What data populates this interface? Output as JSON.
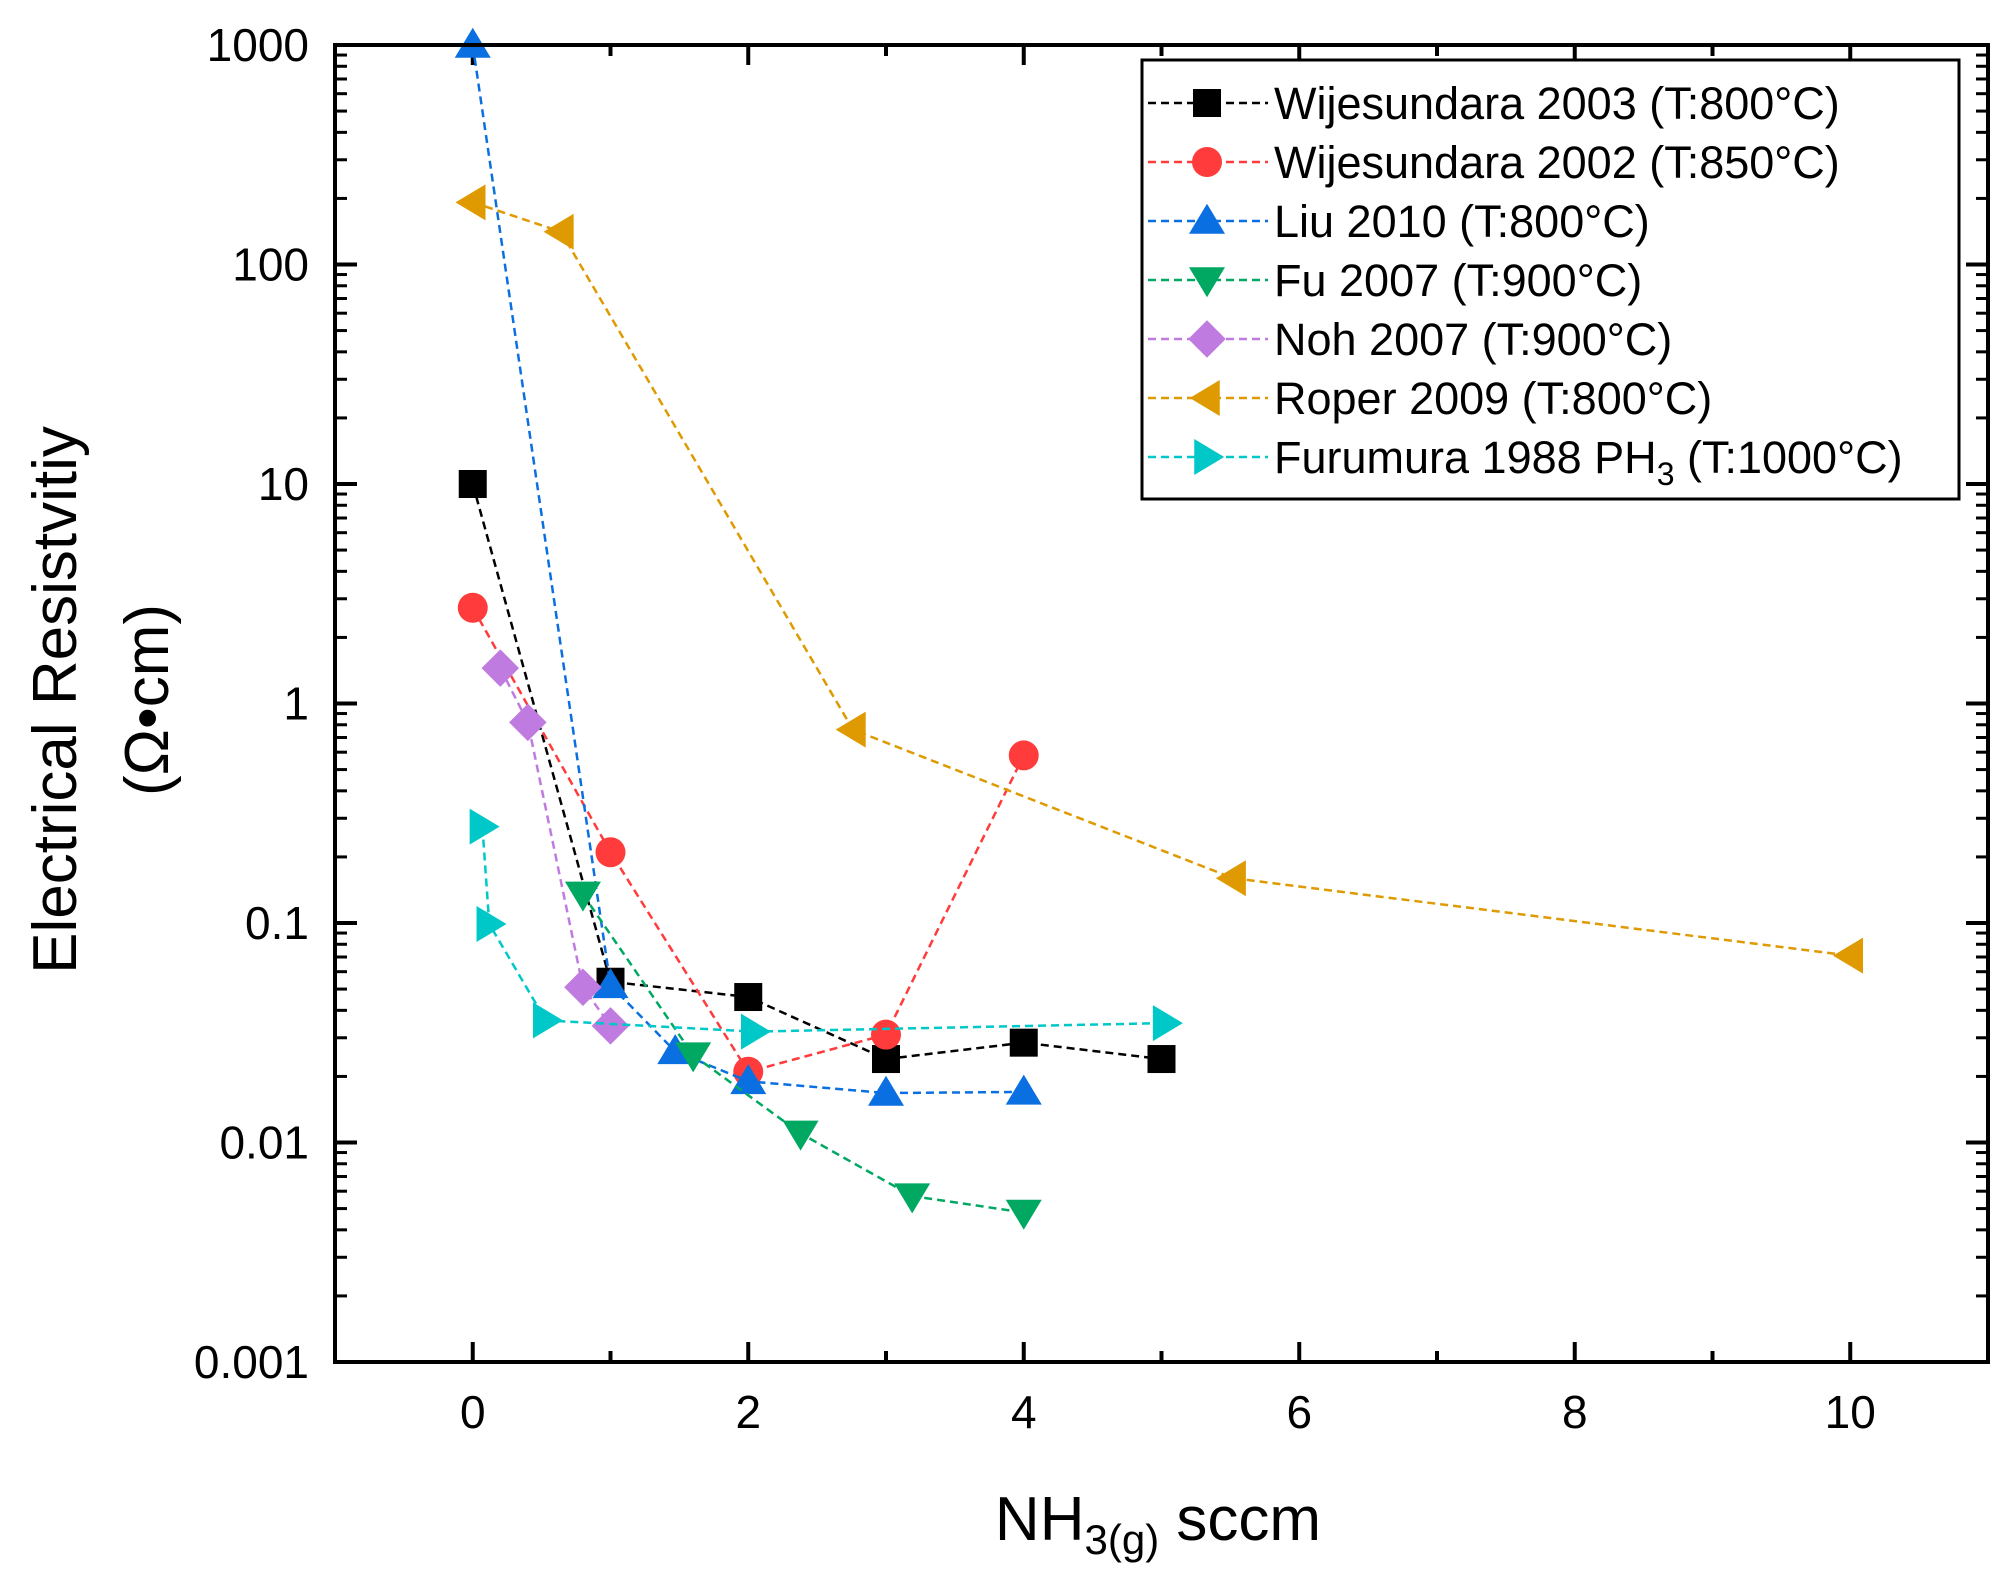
{
  "chart_data": {
    "type": "scatter",
    "title": "",
    "xlabel": {
      "main": "NH",
      "sub": "3(g)",
      "suffix": " sccm"
    },
    "ylabel": {
      "line1": "Electrical Resistvitiy",
      "line2": "(Ω•cm)"
    },
    "xlim": [
      -1,
      11
    ],
    "ylim": [
      0.001,
      1000
    ],
    "yscale": "log",
    "xticks": [
      "0",
      "2",
      "4",
      "6",
      "8",
      "10"
    ],
    "xtick_values": [
      0,
      2,
      4,
      6,
      8,
      10
    ],
    "yticks": [
      "0.001",
      "0.01",
      "0.1",
      "1",
      "10",
      "100",
      "1000"
    ],
    "ytick_values": [
      0.001,
      0.01,
      0.1,
      1,
      10,
      100,
      1000
    ],
    "grid": false,
    "legend_position": "top-right",
    "series": [
      {
        "name": "Wijesundara 2003 (T:800°C)",
        "label": "Wijesundara 2003 (T:800°C)",
        "color": "#000000",
        "marker": "square",
        "x": [
          0,
          1,
          2,
          3,
          4,
          5
        ],
        "y": [
          10,
          0.054,
          0.046,
          0.024,
          0.0285,
          0.024
        ]
      },
      {
        "name": "Wijesundara 2002 (T:850°C)",
        "label": "Wijesundara 2002 (T:850°C)",
        "color": "#ff3b3b",
        "marker": "circle",
        "x": [
          0,
          1,
          2,
          3,
          4
        ],
        "y": [
          2.73,
          0.21,
          0.021,
          0.031,
          0.58
        ]
      },
      {
        "name": "Liu 2010 (T:800°C)",
        "label": "Liu 2010 (T:800°C)",
        "color": "#0a6fe0",
        "marker": "triangle-up",
        "x": [
          0,
          1,
          1.47,
          2,
          3,
          4
        ],
        "y": [
          1000,
          0.052,
          0.026,
          0.019,
          0.0168,
          0.017
        ]
      },
      {
        "name": "Fu 2007 (T:900°C)",
        "label": "Fu 2007 (T:900°C)",
        "color": "#00a862",
        "marker": "triangle-down",
        "x": [
          0.8,
          1.6,
          2.38,
          3.19,
          4
        ],
        "y": [
          0.135,
          0.025,
          0.011,
          0.0057,
          0.0048
        ]
      },
      {
        "name": "Noh 2007 (T:900°C)",
        "label": "Noh 2007 (T:900°C)",
        "color": "#c07be0",
        "marker": "diamond",
        "x": [
          0.2,
          0.4,
          0.8,
          1
        ],
        "y": [
          1.45,
          0.82,
          0.051,
          0.034
        ]
      },
      {
        "name": "Roper 2009 (T:800°C)",
        "label": "Roper 2009 (T:800°C)",
        "color": "#de9a00",
        "marker": "triangle-left",
        "x": [
          0,
          0.64,
          2.76,
          5.52,
          10
        ],
        "y": [
          192,
          141,
          0.76,
          0.16,
          0.071
        ]
      },
      {
        "name": "Furumura 1988 PH3 (T:1000°C)",
        "label": "Furumura 1988 PH",
        "label_sub": "3",
        "label_suffix": " (T:1000°C)",
        "color": "#00c8c8",
        "marker": "triangle-right",
        "x": [
          0.07,
          0.12,
          0.53,
          2.04,
          5.03
        ],
        "y": [
          0.275,
          0.099,
          0.036,
          0.032,
          0.035
        ]
      }
    ]
  }
}
